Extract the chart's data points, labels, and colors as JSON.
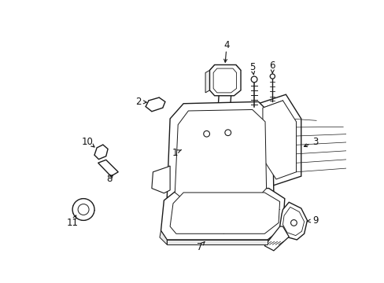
{
  "background_color": "#ffffff",
  "line_color": "#1a1a1a",
  "label_color": "#111111",
  "figsize": [
    4.89,
    3.6
  ],
  "dpi": 100
}
